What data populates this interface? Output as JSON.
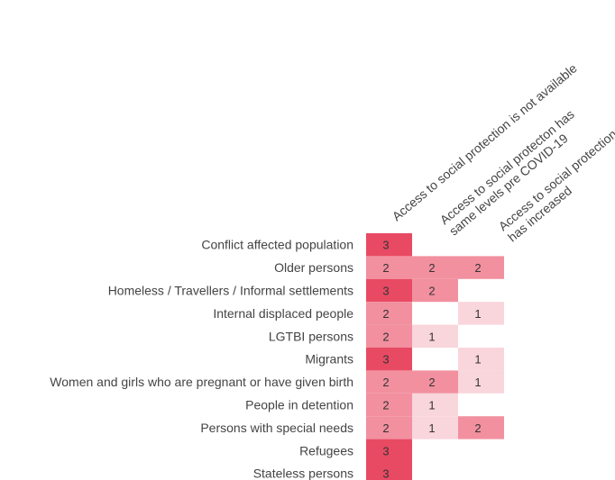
{
  "chart_data": {
    "type": "heatmap",
    "columns": [
      [
        "Access to social protection is not available"
      ],
      [
        "Access to social protecton has",
        "same levels pre COVID-19"
      ],
      [
        "Access to social protection",
        "has increased"
      ]
    ],
    "rows": [
      "Conflict affected population",
      "Older persons",
      "Homeless / Travellers / Informal settlements",
      "Internal displaced people",
      "LGTBI persons",
      "Migrants",
      "Women and girls who are pregnant or have given birth",
      "People in detention",
      "Persons with special needs",
      "Refugees",
      "Stateless persons"
    ],
    "values": [
      [
        3,
        null,
        null
      ],
      [
        2,
        2,
        2
      ],
      [
        3,
        2,
        null
      ],
      [
        2,
        null,
        1
      ],
      [
        2,
        1,
        null
      ],
      [
        3,
        null,
        1
      ],
      [
        2,
        2,
        1
      ],
      [
        2,
        1,
        null
      ],
      [
        2,
        1,
        2
      ],
      [
        3,
        null,
        null
      ],
      [
        3,
        null,
        null
      ]
    ],
    "colors": {
      "1": "#f9d5dc",
      "2": "#f2909f",
      "3": "#e84a63"
    }
  }
}
